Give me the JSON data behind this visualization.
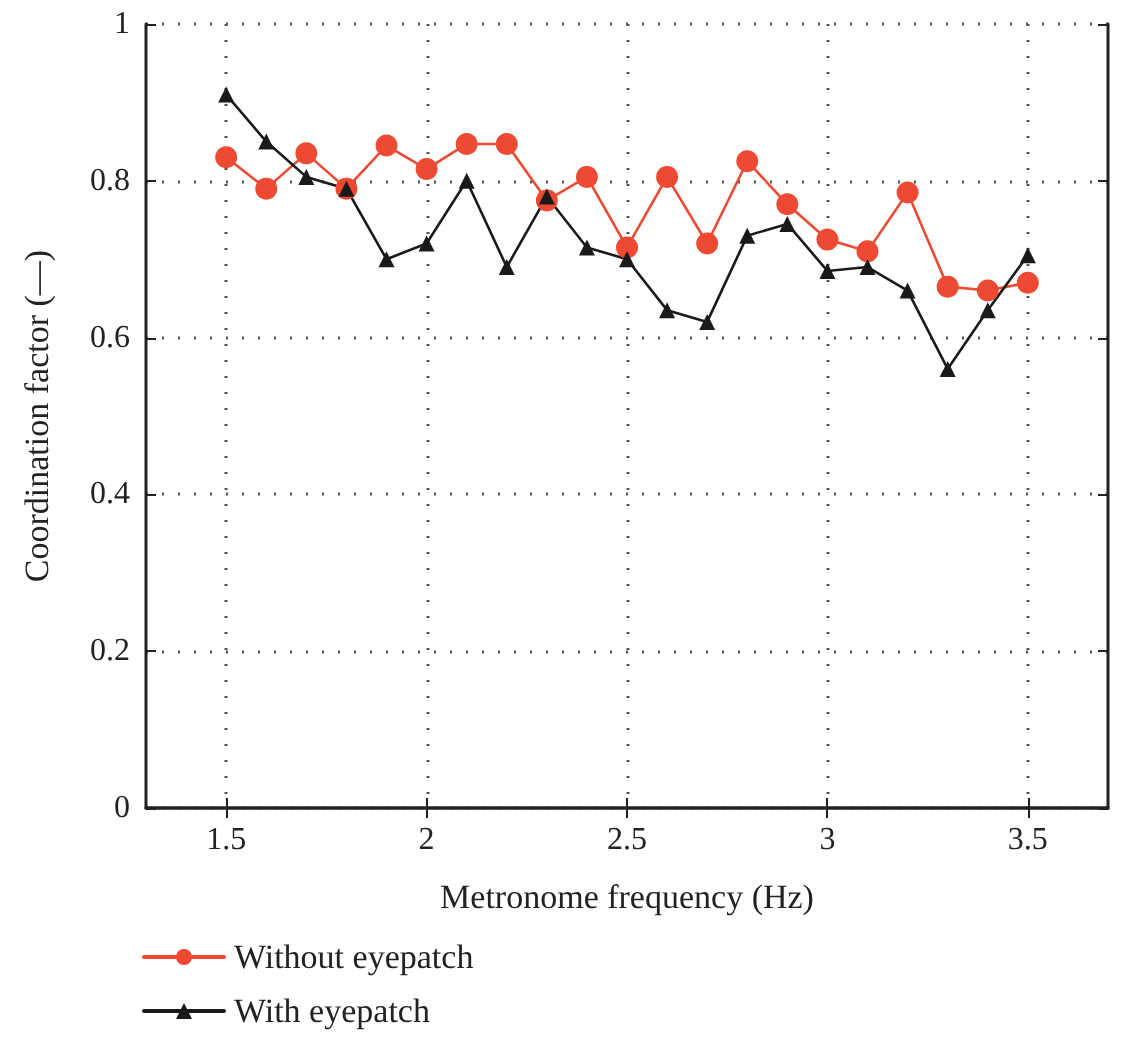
{
  "chart_data": {
    "type": "line",
    "xlabel": "Metronome frequency (Hz)",
    "ylabel": "Coordination factor (—)",
    "x": [
      1.5,
      1.6,
      1.7,
      1.8,
      1.9,
      2.0,
      2.1,
      2.2,
      2.3,
      2.4,
      2.5,
      2.6,
      2.7,
      2.8,
      2.9,
      3.0,
      3.1,
      3.2,
      3.3,
      3.4,
      3.5
    ],
    "series": [
      {
        "name": "Without eyepatch",
        "color": "#ee4a33",
        "marker": "circle",
        "values": [
          0.83,
          0.79,
          0.835,
          0.79,
          0.845,
          0.815,
          0.847,
          0.847,
          0.775,
          0.805,
          0.715,
          0.805,
          0.72,
          0.825,
          0.77,
          0.725,
          0.71,
          0.785,
          0.665,
          0.66,
          0.67
        ]
      },
      {
        "name": "With eyepatch",
        "color": "#1a1a1a",
        "marker": "triangle",
        "values": [
          0.91,
          0.85,
          0.805,
          0.79,
          0.7,
          0.72,
          0.8,
          0.69,
          0.78,
          0.715,
          0.7,
          0.635,
          0.62,
          0.73,
          0.745,
          0.685,
          0.69,
          0.66,
          0.56,
          0.635,
          0.705
        ]
      }
    ],
    "xlim": [
      1.3,
      3.7
    ],
    "xticks": [
      1.5,
      2,
      2.5,
      3,
      3.5
    ],
    "ylim": [
      0,
      1
    ],
    "yticks": [
      0,
      0.2,
      0.4,
      0.6,
      0.8,
      1
    ],
    "grid": true,
    "legend": "bottom left",
    "line_style": "solid"
  }
}
